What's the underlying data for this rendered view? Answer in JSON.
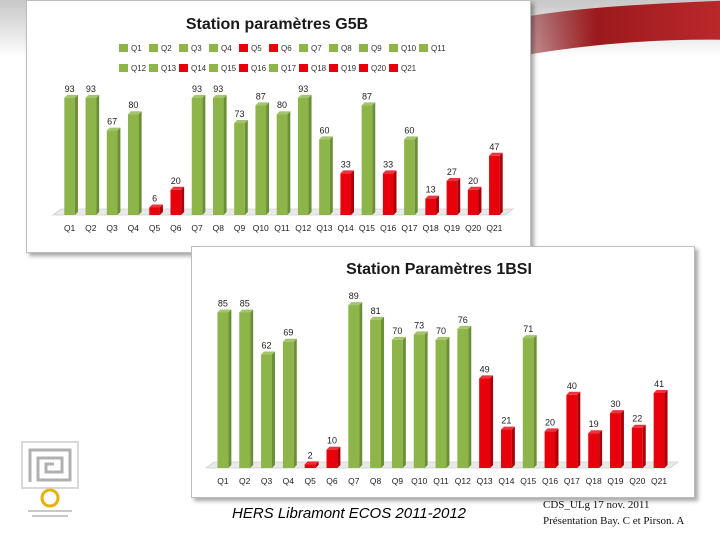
{
  "chart_data": [
    {
      "type": "bar",
      "title": "Station paramètres G5B",
      "categories": [
        "Q1",
        "Q2",
        "Q3",
        "Q4",
        "Q5",
        "Q6",
        "Q7",
        "Q8",
        "Q9",
        "Q10",
        "Q11",
        "Q12",
        "Q13",
        "Q14",
        "Q15",
        "Q16",
        "Q17",
        "Q18",
        "Q19",
        "Q20",
        "Q21"
      ],
      "values": [
        93,
        93,
        67,
        80,
        6,
        20,
        93,
        93,
        73,
        87,
        80,
        93,
        60,
        33,
        87,
        33,
        60,
        13,
        27,
        20,
        47
      ],
      "colors": [
        "#8db54a",
        "#8db54a",
        "#8db54a",
        "#8db54a",
        "#e8000b",
        "#e8000b",
        "#8db54a",
        "#8db54a",
        "#8db54a",
        "#8db54a",
        "#8db54a",
        "#8db54a",
        "#8db54a",
        "#e8000b",
        "#8db54a",
        "#e8000b",
        "#8db54a",
        "#e8000b",
        "#e8000b",
        "#e8000b",
        "#e8000b"
      ],
      "legend": [
        "Q1",
        "Q2",
        "Q3",
        "Q4",
        "Q5",
        "Q6",
        "Q7",
        "Q8",
        "Q9",
        "Q10",
        "Q11",
        "Q12",
        "Q13",
        "Q14",
        "Q15",
        "Q16",
        "Q17",
        "Q18",
        "Q19",
        "Q20",
        "Q21"
      ],
      "legend_position": "top",
      "ylim": [
        0,
        100
      ],
      "grid": false
    },
    {
      "type": "bar",
      "title": "Station Paramètres 1BSI",
      "categories": [
        "Q1",
        "Q2",
        "Q3",
        "Q4",
        "Q5",
        "Q6",
        "Q7",
        "Q8",
        "Q9",
        "Q10",
        "Q11",
        "Q12",
        "Q13",
        "Q14",
        "Q15",
        "Q16",
        "Q17",
        "Q18",
        "Q19",
        "Q20",
        "Q21"
      ],
      "values": [
        85,
        85,
        62,
        69,
        2,
        10,
        89,
        81,
        70,
        73,
        70,
        76,
        49,
        21,
        71,
        20,
        40,
        19,
        30,
        22,
        41
      ],
      "colors": [
        "#8db54a",
        "#8db54a",
        "#8db54a",
        "#8db54a",
        "#e8000b",
        "#e8000b",
        "#8db54a",
        "#8db54a",
        "#8db54a",
        "#8db54a",
        "#8db54a",
        "#8db54a",
        "#e8000b",
        "#e8000b",
        "#8db54a",
        "#e8000b",
        "#e8000b",
        "#e8000b",
        "#e8000b",
        "#e8000b",
        "#e8000b"
      ],
      "ylim": [
        0,
        100
      ],
      "grid": false
    }
  ],
  "footer": {
    "event": "HERS Libramont ECOS 2011-2012",
    "cds_line1": "CDS_ULg     17 nov. 2011",
    "cds_line2": "Présentation Bay. C et Pirson. A"
  },
  "colors": {
    "good": "#8db54a",
    "bad": "#e8000b"
  },
  "icons": {
    "logo": "spiral-logo-icon"
  }
}
